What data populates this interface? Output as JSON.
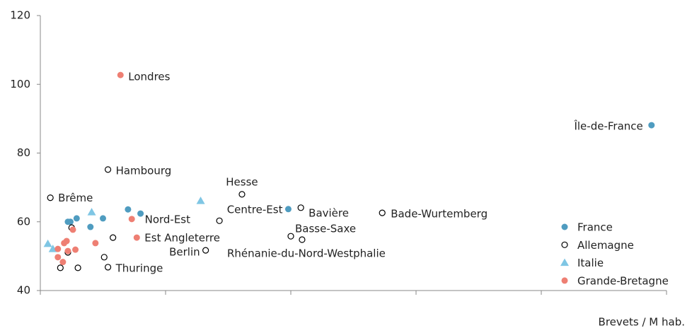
{
  "chart_data": {
    "type": "scatter",
    "x_label": "Brevets / M hab.",
    "xlim": [
      0,
      5
    ],
    "xticks": [
      0,
      1,
      2,
      3,
      4,
      5
    ],
    "ylim": [
      40,
      120
    ],
    "yticks": [
      40,
      60,
      80,
      100,
      120
    ],
    "legend": "bottom-right",
    "series": [
      {
        "name": "France",
        "color": "#4f9cc0",
        "marker": "circle",
        "x": [
          4.88,
          1.98,
          0.8,
          0.7,
          0.5,
          0.29,
          0.22,
          0.24,
          0.4
        ],
        "values": [
          88.1,
          63.7,
          62.4,
          63.6,
          61.0,
          61.0,
          60.0,
          60.0,
          58.5
        ],
        "labels": [
          "Île-de-France",
          "Centre-Est",
          "Nord-Est",
          null,
          null,
          null,
          null,
          null,
          null
        ]
      },
      {
        "name": "Allemagne",
        "color": "#000000",
        "marker": "open-circle",
        "x": [
          0.08,
          0.54,
          1.61,
          2.08,
          2.73,
          1.43,
          2.0,
          2.09,
          1.32,
          0.54,
          0.51,
          0.58,
          0.25,
          0.22,
          0.16,
          0.3
        ],
        "values": [
          67.0,
          75.2,
          68.0,
          64.1,
          62.6,
          60.3,
          55.8,
          54.8,
          51.7,
          46.8,
          49.7,
          55.4,
          58.3,
          51.1,
          46.6,
          46.6
        ],
        "labels": [
          "Brême",
          "Hambourg",
          "Hesse",
          "Bavière",
          "Bade-Wurtemberg",
          null,
          "Basse-Saxe",
          "Rhénanie-du-Nord-Westphalie",
          "Berlin",
          "Thuringe",
          null,
          null,
          null,
          null,
          null,
          null
        ]
      },
      {
        "name": "Italie",
        "color": "#7fc6e4",
        "marker": "triangle",
        "x": [
          1.28,
          0.41,
          0.06,
          0.1
        ],
        "values": [
          66.1,
          62.8,
          53.6,
          52.1
        ]
      },
      {
        "name": "Grande-Bretagne",
        "color": "#ee7f73",
        "marker": "circle",
        "x": [
          0.64,
          0.73,
          0.77,
          0.44,
          0.26,
          0.28,
          0.21,
          0.19,
          0.22,
          0.14,
          0.14,
          0.18
        ],
        "values": [
          102.7,
          60.8,
          55.4,
          53.8,
          57.7,
          51.9,
          54.4,
          53.8,
          51.5,
          52.1,
          49.7,
          48.3
        ],
        "labels": [
          "Londres",
          null,
          "Est Angleterre",
          null,
          null,
          null,
          null,
          null,
          null,
          null,
          null,
          null
        ]
      }
    ]
  }
}
